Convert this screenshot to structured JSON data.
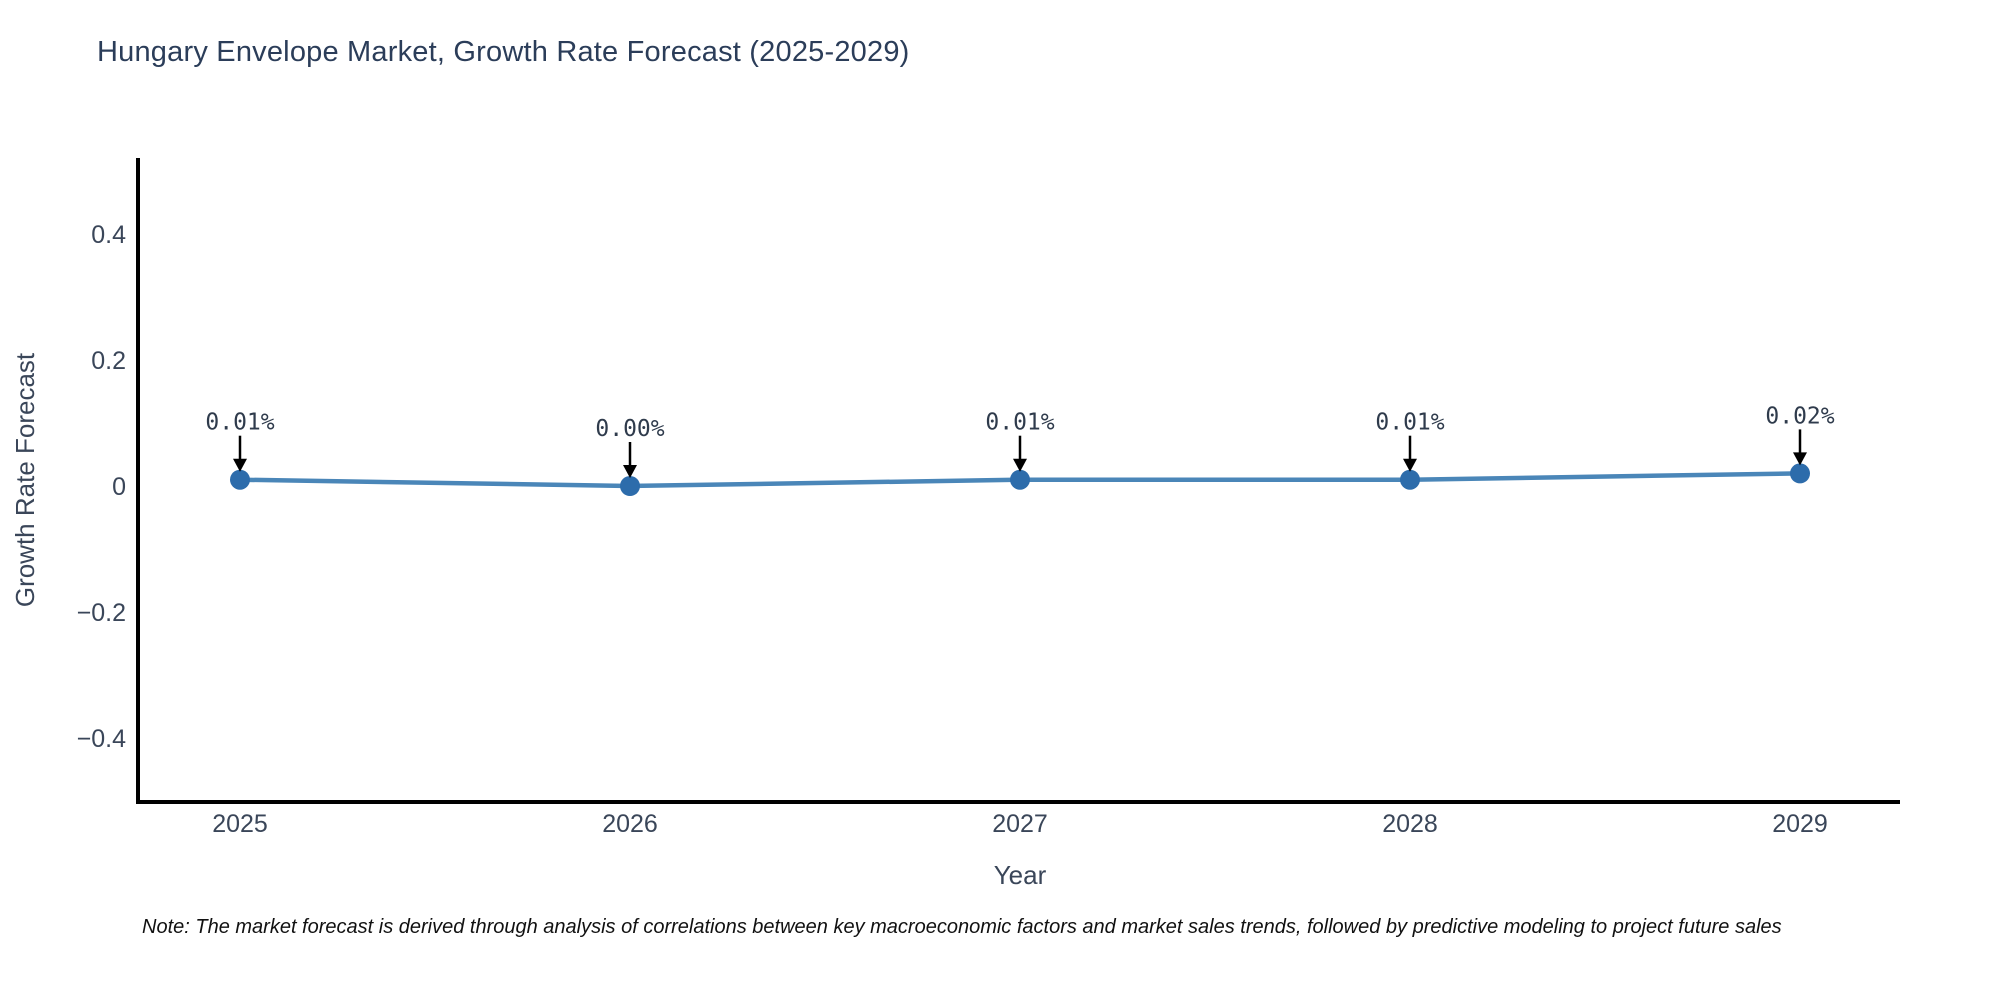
{
  "chart_data": {
    "type": "line",
    "title": "Hungary Envelope Market, Growth Rate Forecast (2025-2029)",
    "xlabel": "Year",
    "ylabel": "Growth Rate Forecast",
    "x": [
      2025,
      2026,
      2027,
      2028,
      2029
    ],
    "series": [
      {
        "name": "Growth Rate Forecast",
        "values": [
          0.01,
          0.0,
          0.01,
          0.01,
          0.02
        ]
      }
    ],
    "point_labels": [
      "0.01%",
      "0.00%",
      "0.01%",
      "0.01%",
      "0.02%"
    ],
    "xticks": [
      "2025",
      "2026",
      "2027",
      "2028",
      "2029"
    ],
    "yticks": [
      {
        "value": 0.4,
        "label": "0.4"
      },
      {
        "value": 0.2,
        "label": "0.2"
      },
      {
        "value": 0,
        "label": "0"
      },
      {
        "value": -0.2,
        "label": "−0.2"
      },
      {
        "value": -0.4,
        "label": "−0.4"
      }
    ],
    "ylim": [
      -0.5,
      0.52
    ],
    "grid": false,
    "legend": "none",
    "colors": {
      "line": "#4a86b8",
      "marker": "#2d6cab",
      "axis": "#000000",
      "title": "#2b3d59",
      "tick": "#3a4659",
      "axis_title": "#3a4659",
      "annotation": "#2f3b4c",
      "arrow": "#000000"
    }
  },
  "note": {
    "text": "Note: The market forecast is derived through analysis of correlations between key macroeconomic factors and market sales trends, followed by predictive modeling to project future sales"
  }
}
